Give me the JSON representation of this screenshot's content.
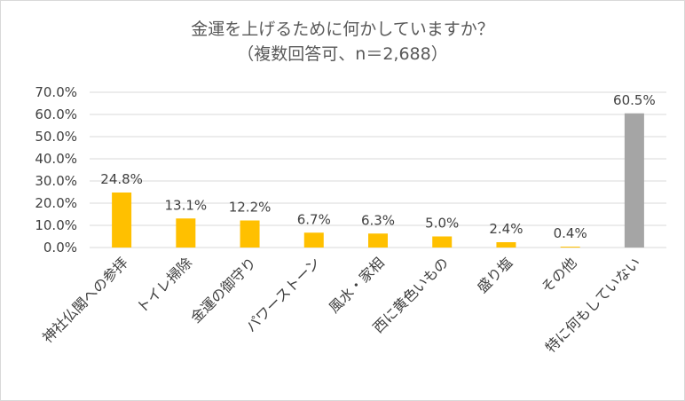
{
  "chart_data": {
    "type": "bar",
    "title": "金運を上げるために何かしていますか？",
    "subtitle": "（複数回答可、n＝2,688）",
    "xlabel": "",
    "ylabel": "",
    "ylim": [
      0,
      70
    ],
    "y_tick_step": 10,
    "y_tick_labels": [
      "0.0%",
      "10.0%",
      "20.0%",
      "30.0%",
      "40.0%",
      "50.0%",
      "60.0%",
      "70.0%"
    ],
    "grid": true,
    "legend": "none",
    "categories": [
      "神社仏閣への参拝",
      "トイレ掃除",
      "金運の御守り",
      "パワーストーン",
      "風水・家相",
      "西に黄色いもの",
      "盛り塩",
      "その他",
      "特に何もしていない"
    ],
    "values": [
      24.8,
      13.1,
      12.2,
      6.7,
      6.3,
      5.0,
      2.4,
      0.4,
      60.5
    ],
    "data_labels": [
      "24.8%",
      "13.1%",
      "12.2%",
      "6.7%",
      "6.3%",
      "5.0%",
      "2.4%",
      "0.4%",
      "60.5%"
    ],
    "colors": [
      "#FFC000",
      "#FFC000",
      "#FFC000",
      "#FFC000",
      "#FFC000",
      "#FFC000",
      "#FFC000",
      "#FFC000",
      "#A5A5A5"
    ]
  }
}
